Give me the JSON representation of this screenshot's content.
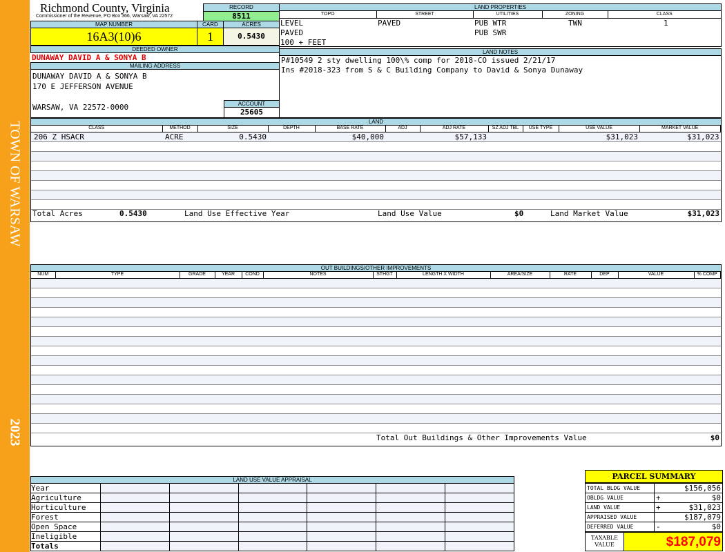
{
  "sidebar": {
    "town": "TOWN OF WARSAW",
    "year": "2023",
    "color": "#f7a11a"
  },
  "header": {
    "county": "Richmond County, Virginia",
    "office": "Commissioner of the Revenue, PO Box 366, Warsaw, VA 22572",
    "record_label": "RECORD",
    "record": "8511",
    "map_label": "MAP NUMBER",
    "map": "16A3(10)6",
    "card_label": "CARD",
    "card": "1",
    "acres_label": "ACRES",
    "acres": "0.5430"
  },
  "owner": {
    "deeded_label": "DEEDED OWNER",
    "deeded": "DUNAWAY DAVID A & SONYA B",
    "mailing_label": "MAILING ADDRESS",
    "address": [
      "DUNAWAY DAVID A & SONYA B",
      "170 E JEFFERSON AVENUE",
      "",
      "WARSAW, VA 22572-0000"
    ],
    "account_label": "ACCOUNT",
    "account": "25605"
  },
  "land_properties": {
    "title": "LAND PROPERTIES",
    "columns": [
      "TOPO",
      "STREET",
      "UTILITIES",
      "ZONING",
      "CLASS"
    ],
    "topo": [
      "LEVEL",
      "PAVED",
      "100 + FEET"
    ],
    "street": "PAVED",
    "utilities": [
      "PUB WTR",
      "PUB SWR"
    ],
    "zoning": "TWN",
    "class": "1"
  },
  "land_notes": {
    "title": "LAND NOTES",
    "lines": [
      "P#10549 2 sty dwelling 100\\% comp for 2018-CO issued 2/21/17",
      "Ins #2018-323 from S & C Building Company to David & Sonya Dunaway"
    ]
  },
  "land": {
    "title": "LAND",
    "columns": [
      "CLASS",
      "METHOD",
      "SIZE",
      "DEPTH",
      "BASE RATE",
      "ADJ",
      "ADJ RATE",
      "SZ ADJ TBL",
      "USE TYPE",
      "USE VALUE",
      "MARKET VALUE"
    ],
    "rows": [
      [
        "206 Z HSACR",
        "ACRE",
        "0.5430",
        "",
        "$40,000",
        "",
        "$57,133",
        "",
        "",
        "$31,023",
        "$31,023"
      ]
    ],
    "totals": {
      "acres_label": "Total Acres",
      "acres": "0.5430",
      "eff_year_label": "Land Use Effective Year",
      "eff_year": "",
      "use_value_label": "Land Use Value",
      "use_value": "$0",
      "market_label": "Land Market Value",
      "market": "$31,023"
    }
  },
  "outbuildings": {
    "title": "OUT BUILDINGS/OTHER IMPROVEMENTS",
    "columns": [
      "NUM",
      "TYPE",
      "GRADE",
      "YEAR",
      "COND",
      "NOTES",
      "STHGT",
      "LENGTH X WIDTH",
      "AREA/SIZE",
      "RATE",
      "DEP",
      "VALUE",
      "% COMP"
    ],
    "total_label": "Total Out Buildings & Other Improvements Value",
    "total": "$0"
  },
  "land_use": {
    "title": "LAND USE VALUE APPRAISAL",
    "rows": [
      "Year",
      "Agriculture",
      "Horticulture",
      "Forest",
      "Open Space",
      "Ineligible",
      "Totals"
    ]
  },
  "parcel_summary": {
    "title": "PARCEL SUMMARY",
    "rows": [
      {
        "label": "TOTAL BLDG VALUE",
        "op": "",
        "value": "$156,056"
      },
      {
        "label": "OBLDG VALUE",
        "op": "+",
        "value": "$0"
      },
      {
        "label": "LAND VALUE",
        "op": "+",
        "value": "$31,023"
      },
      {
        "label": "APPRAISED VALUE",
        "op": "",
        "value": "$187,079"
      },
      {
        "label": "DEFERRED VALUE",
        "op": "-",
        "value": "$0"
      }
    ],
    "taxable_label": "TAXABLE VALUE",
    "taxable": "$187,079",
    "taxable_color": "#ff0000"
  }
}
